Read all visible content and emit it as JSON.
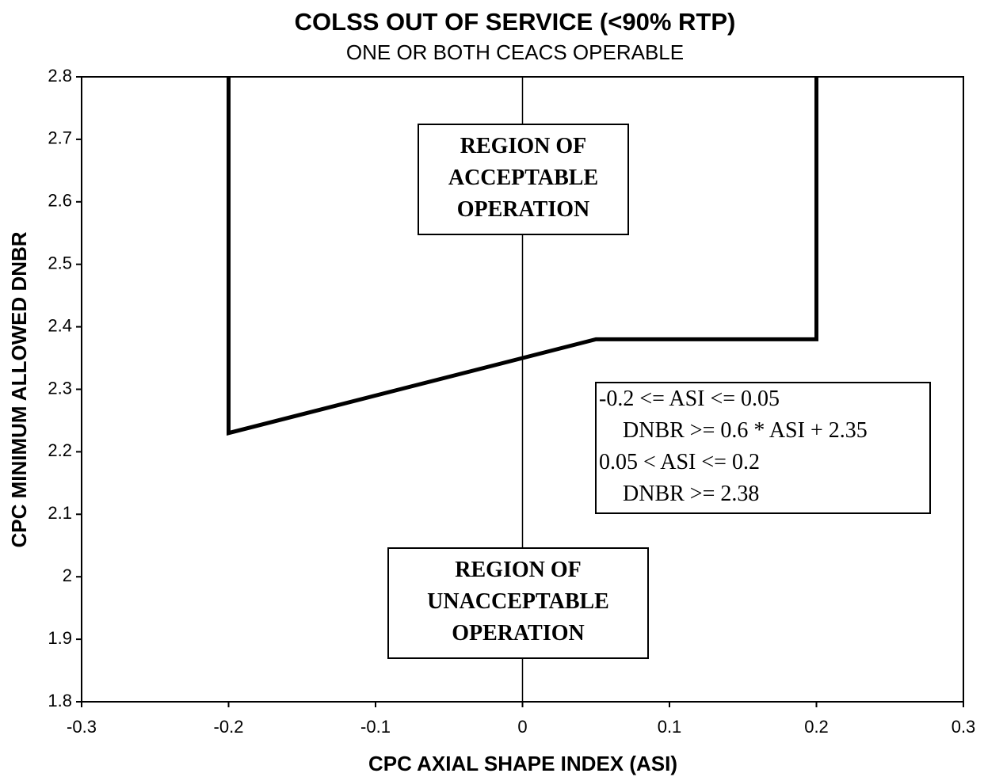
{
  "chart_data": {
    "type": "line",
    "title": "COLSS OUT OF SERVICE (<90% RTP)",
    "subtitle": "ONE OR BOTH CEACS OPERABLE",
    "x_label": "CPC AXIAL SHAPE INDEX (ASI)",
    "y_label": "CPC MINIMUM ALLOWED DNBR",
    "xlim": [
      -0.3,
      0.3
    ],
    "xticks": [
      -0.3,
      -0.2,
      -0.1,
      0,
      0.1,
      0.2,
      0.3
    ],
    "ylim": [
      1.8,
      2.8
    ],
    "yticks": [
      1.8,
      1.9,
      2,
      2.1,
      2.2,
      2.3,
      2.4,
      2.5,
      2.6,
      2.7,
      2.8
    ],
    "series": [
      {
        "color": "#000000",
        "x": [
          -0.2,
          -0.2,
          0.05,
          0.2,
          0.2
        ],
        "values": [
          2.8,
          2.23,
          2.38,
          2.38,
          2.8
        ]
      }
    ],
    "annotations": [
      {
        "lines": [
          "REGION OF",
          "ACCEPTABLE",
          "OPERATION"
        ]
      },
      {
        "lines": [
          "REGION OF",
          "UNACCEPTABLE",
          "OPERATION"
        ]
      },
      {
        "lines": [
          "-0.2 <= ASI <= 0.05",
          "DNBR >= 0.6 * ASI + 2.35",
          "0.05 < ASI <= 0.2",
          "DNBR >= 2.38"
        ]
      }
    ]
  }
}
